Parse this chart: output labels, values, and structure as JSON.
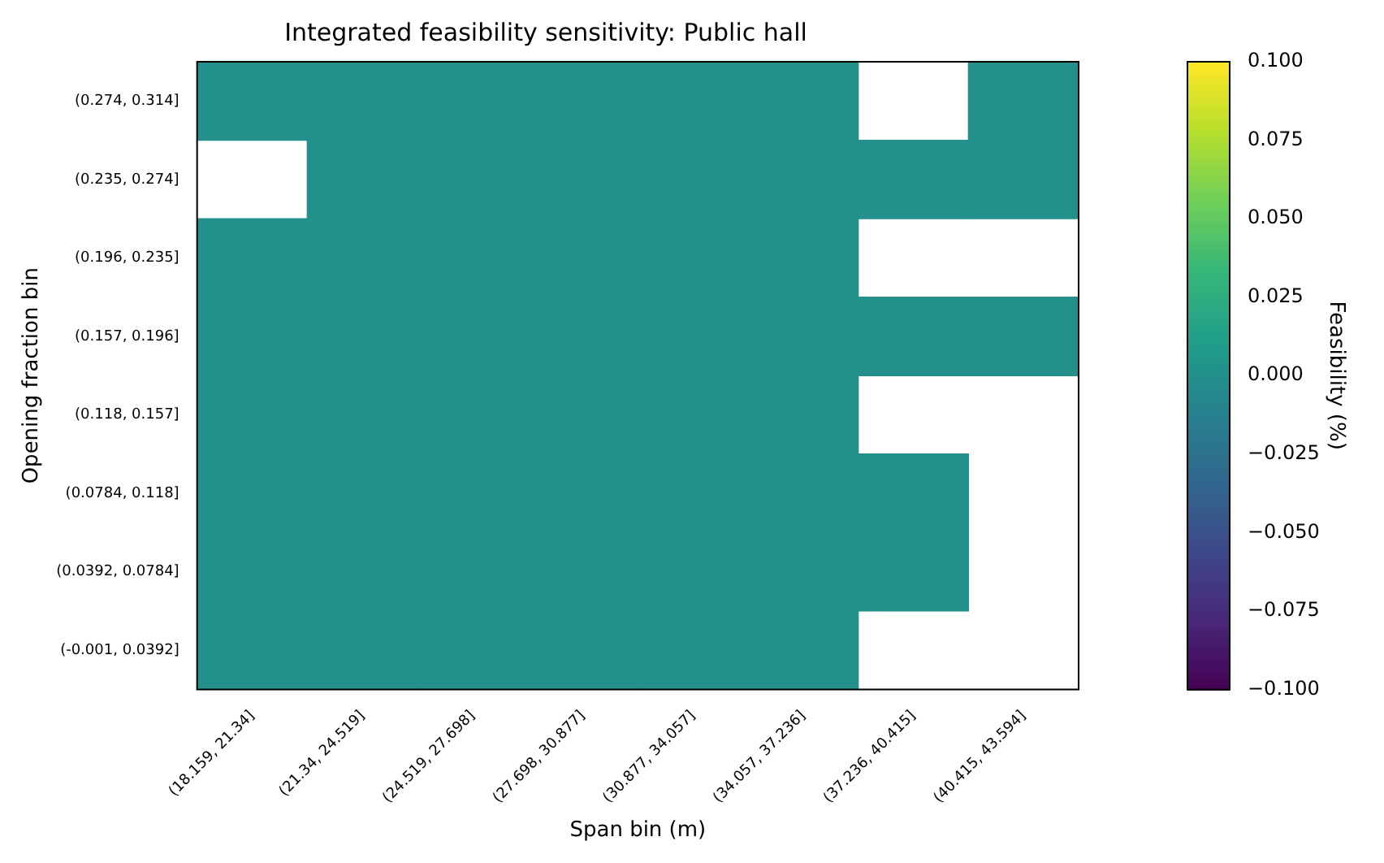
{
  "chart_data": {
    "type": "heatmap",
    "title": "Integrated feasibility sensitivity: Public hall",
    "xlabel": "Span bin (m)",
    "ylabel": "Opening fraction bin",
    "clabel": "Feasibility (%)",
    "categories": [
      "(18.159, 21.34]",
      "(21.34, 24.519]",
      "(24.519, 27.698]",
      "(27.698, 30.877]",
      "(30.877, 34.057]",
      "(34.057, 37.236]",
      "(37.236, 40.415]",
      "(40.415, 43.594]"
    ],
    "y_categories": [
      "(0.274, 0.314]",
      "(0.235, 0.274]",
      "(0.196, 0.235]",
      "(0.157, 0.196]",
      "(0.118, 0.157]",
      "(0.0784, 0.118]",
      "(0.0392, 0.0784]",
      "(-0.001, 0.0392]"
    ],
    "cells": [
      [
        0,
        0,
        0,
        0,
        0,
        0,
        null,
        0
      ],
      [
        null,
        0,
        0,
        0,
        0,
        0,
        0,
        0
      ],
      [
        0,
        0,
        0,
        0,
        0,
        0,
        null,
        null
      ],
      [
        0,
        0,
        0,
        0,
        0,
        0,
        0,
        0
      ],
      [
        0,
        0,
        0,
        0,
        0,
        0,
        null,
        null
      ],
      [
        0,
        0,
        0,
        0,
        0,
        0,
        0,
        null
      ],
      [
        0,
        0,
        0,
        0,
        0,
        0,
        0,
        null
      ],
      [
        0,
        0,
        0,
        0,
        0,
        0,
        null,
        null
      ]
    ],
    "clim": [
      -0.1,
      0.1
    ],
    "cticks": [
      {
        "value": -0.1,
        "label": "−0.100"
      },
      {
        "value": -0.075,
        "label": "−0.075"
      },
      {
        "value": -0.05,
        "label": "−0.050"
      },
      {
        "value": -0.025,
        "label": "−0.025"
      },
      {
        "value": 0,
        "label": "0.000"
      },
      {
        "value": 0.025,
        "label": "0.025"
      },
      {
        "value": 0.05,
        "label": "0.050"
      },
      {
        "value": 0.075,
        "label": "0.075"
      },
      {
        "value": 0.1,
        "label": "0.100"
      }
    ]
  }
}
